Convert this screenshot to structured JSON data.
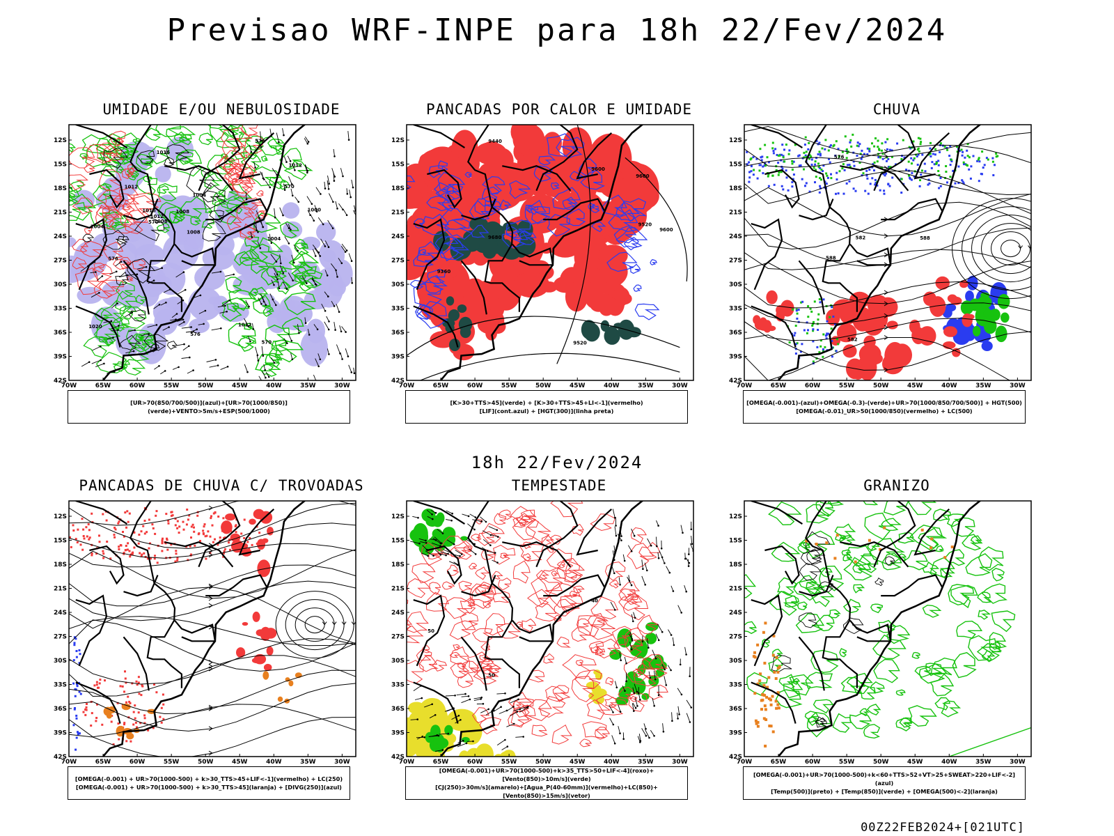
{
  "title": "Previsao WRF-INPE  para 18h 22/Fev/2024",
  "mid_time": "18h 22/Fev/2024",
  "run_label": "00Z22FEB2024+[021UTC]",
  "axes": {
    "lat_labels": [
      "12S",
      "15S",
      "18S",
      "21S",
      "24S",
      "27S",
      "30S",
      "33S",
      "36S",
      "39S",
      "42S"
    ],
    "lon_labels": [
      "70W",
      "65W",
      "60W",
      "55W",
      "50W",
      "45W",
      "40W",
      "35W",
      "30W"
    ]
  },
  "colors": {
    "red": "#f23a3a",
    "green": "#17c20f",
    "blue": "#2a3cf0",
    "lavender": "#b8b3ee",
    "darkteal": "#1f4a44",
    "yellow": "#e8de2c",
    "orange": "#e8801f"
  },
  "panels": [
    {
      "title": "UMIDADE E/OU NEBULOSIDADE",
      "caption": [
        "[UR>70(850/700/500)](azul)+[UR>70(1000/850)](verde)+VENTO>5m/s+ESP(500/1000)"
      ],
      "contour_labels": [
        "1012",
        "1008",
        "1004",
        "1004",
        "1008",
        "1012",
        "1016",
        "1012",
        "1020",
        "1016",
        "1012",
        "1008",
        "1004",
        "1000",
        "576",
        "576",
        "576",
        "570",
        "570",
        "570"
      ]
    },
    {
      "title": "PANCADAS POR CALOR E UMIDADE",
      "caption": [
        "[K>30+TTS>45](verde)  +  [K>30+TTS>45+LI<-1](vermelho)",
        "[LIF](cont.azul)  +  [HGT(300)](linha preta)"
      ],
      "contour_labels": [
        "9680",
        "9600",
        "9600",
        "9600",
        "9520",
        "9520",
        "9440",
        "9360"
      ]
    },
    {
      "title": "CHUVA",
      "caption": [
        "[OMEGA(-0.001)-(azul)+OMEGA(-0.3)-(verde)+UR>70(1000/850/700/500)] + HGT(500)",
        "[OMEGA(-0.01)_UR>50(1000/850)(vermelho) + LC(500)"
      ],
      "contour_labels": [
        "588",
        "588",
        "582",
        "576",
        "582"
      ]
    },
    {
      "title": "PANCADAS DE CHUVA C/ TROVOADAS",
      "caption": [
        "[OMEGA(-0.001) + UR>70(1000-500) + k>30_TTS>45+LIF<-1](vermelho) + LC(250)",
        "[OMEGA(-0.001) + UR>70(1000-500) + k>30_TTS>45](laranja) + [DIVG(250)](azul)"
      ],
      "contour_labels": []
    },
    {
      "title": "TEMPESTADE",
      "caption": [
        "[OMEGA(-0.001)+UR>70(1000-500)+k>35_TTS>50+LIF<-4](roxo)+[Vento(850)>10m/s](verde)",
        "[CJ(250)>30m/s](amarelo)+[Agua_P(40-60mm)](vermelho)+LC(850)+[Vento(850)>15m/s](vetor)"
      ],
      "contour_labels": [
        "50",
        "50",
        "40"
      ]
    },
    {
      "title": "GRANIZO",
      "caption": [
        "[OMEGA(-0.001)+UR>70(1000-500)+k<60+TTS>52+VT>25+SWEAT>220+LIF<-2](azul)",
        "[Temp(500)](preto) + [Temp(850)](verde) + [OMEGA(500)<-2](laranja)"
      ],
      "contour_labels": []
    }
  ]
}
